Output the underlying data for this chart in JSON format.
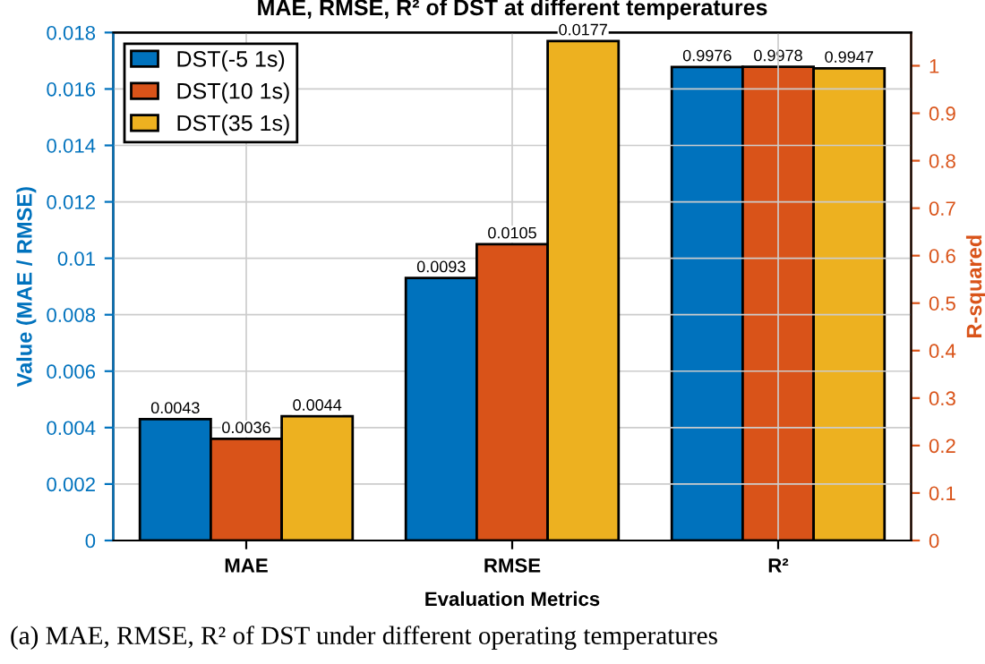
{
  "chart_data": {
    "type": "bar",
    "title": "MAE, RMSE, R² of DST at different temperatures",
    "xlabel": "Evaluation Metrics",
    "ylabel": "Value (MAE / RMSE)",
    "y2label": "R-squared",
    "categories": [
      "MAE",
      "RMSE",
      "R²"
    ],
    "series": [
      {
        "name": "DST(-5 1s)",
        "color": "#0072bd",
        "values": [
          0.0043,
          0.0093,
          null
        ]
      },
      {
        "name": "DST(10 1s)",
        "color": "#d95319",
        "values": [
          0.0036,
          0.0105,
          null
        ]
      },
      {
        "name": "DST(35 1s)",
        "color": "#edb120",
        "values": [
          0.0044,
          0.0177,
          null
        ]
      },
      {
        "color": "#0072bd",
        "axis": "y2",
        "values": [
          null,
          null,
          0.9976
        ]
      },
      {
        "color": "#d95319",
        "axis": "y2",
        "values": [
          null,
          null,
          0.9978
        ]
      },
      {
        "color": "#edb120",
        "axis": "y2",
        "values": [
          null,
          null,
          0.9947
        ]
      }
    ],
    "ylim": [
      0,
      0.018
    ],
    "yticks": [
      0,
      0.002,
      0.004,
      0.006,
      0.008,
      0.01,
      0.012,
      0.014,
      0.016,
      0.018
    ],
    "y2lim": [
      0,
      1.07
    ],
    "y2ticks": [
      0,
      0.1,
      0.2,
      0.3,
      0.4,
      0.5,
      0.6,
      0.7,
      0.8,
      0.9,
      1
    ],
    "data_labels": true,
    "grid": true,
    "legend": "top left",
    "annotations": [
      "(a) MAE, RMSE, R² of DST under different operating temperatures"
    ]
  }
}
